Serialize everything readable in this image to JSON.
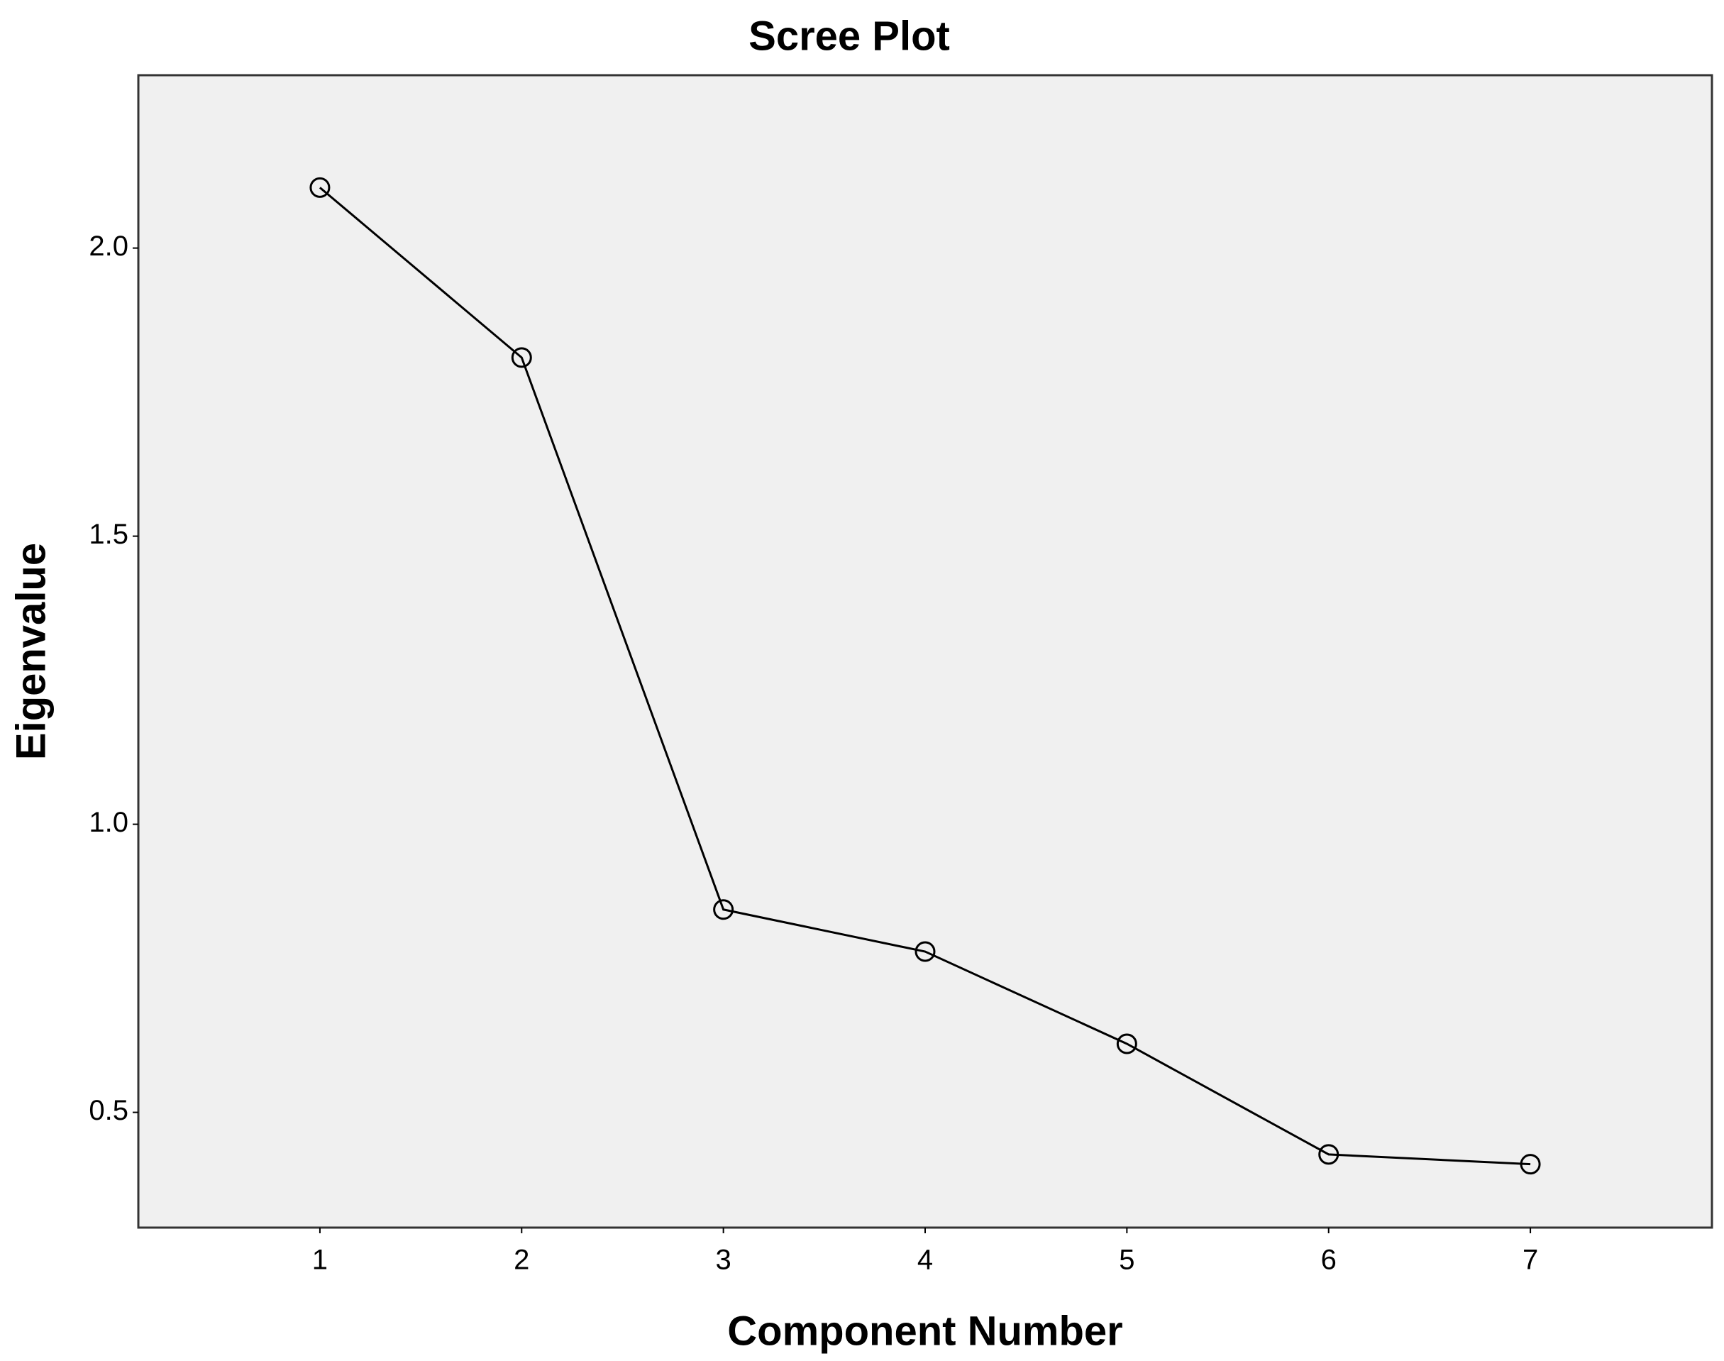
{
  "chart_data": {
    "type": "line",
    "title": "Scree Plot",
    "x_label": "Component Number",
    "y_label": "Eigenvalue",
    "x": [
      1,
      2,
      3,
      4,
      5,
      6,
      7
    ],
    "series": [
      {
        "name": "Eigenvalue",
        "color": "#000000",
        "values": [
          2.105,
          1.81,
          0.852,
          0.779,
          0.619,
          0.427,
          0.41
        ]
      }
    ],
    "xlim": [
      0.1,
      7.9
    ],
    "xticks": [
      1,
      2,
      3,
      4,
      5,
      6,
      7
    ],
    "ylim": [
      0.3,
      2.3
    ],
    "yticks": [
      0.5,
      {
        "value": 1.0,
        "label": "1.0"
      },
      1.5,
      {
        "value": 2.0,
        "label": "2.0"
      }
    ],
    "grid": false,
    "background": "#f0f0f0"
  }
}
